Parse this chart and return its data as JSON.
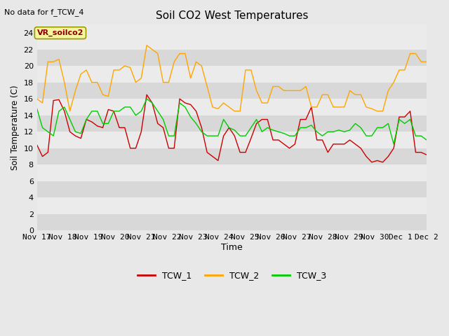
{
  "title": "Soil CO2 West Temperatures",
  "no_data_text": "No data for f_TCW_4",
  "ylabel": "Soil Temperature (C)",
  "xlabel": "Time",
  "annotation_label": "VR_soilco2",
  "ylim": [
    0,
    25
  ],
  "yticks": [
    0,
    2,
    4,
    6,
    8,
    10,
    12,
    14,
    16,
    18,
    20,
    22,
    24
  ],
  "xtick_labels": [
    "Nov 17",
    "Nov 18",
    "Nov 19",
    "Nov 20",
    "Nov 21",
    "Nov 22",
    "Nov 23",
    "Nov 24",
    "Nov 25",
    "Nov 26",
    "Nov 27",
    "Nov 28",
    "Nov 29",
    "Nov 30",
    "Dec 1",
    "Dec 2"
  ],
  "bg_color": "#e8e8e8",
  "band_light": "#ebebeb",
  "band_dark": "#d8d8d8",
  "line_colors": {
    "TCW_1": "#cc0000",
    "TCW_2": "#ffa500",
    "TCW_3": "#00cc00"
  },
  "TCW_1": [
    10.4,
    9.0,
    9.5,
    15.8,
    15.9,
    14.5,
    12.0,
    11.5,
    11.2,
    13.5,
    13.2,
    12.7,
    12.5,
    14.7,
    14.5,
    12.5,
    12.5,
    10.0,
    10.0,
    12.0,
    16.5,
    15.5,
    13.0,
    12.5,
    10.0,
    10.0,
    16.0,
    15.5,
    15.3,
    14.5,
    12.5,
    9.5,
    9.0,
    8.5,
    11.5,
    12.5,
    11.5,
    9.5,
    9.5,
    11.2,
    13.0,
    13.5,
    13.5,
    11.0,
    11.0,
    10.5,
    10.0,
    10.5,
    13.5,
    13.5,
    15.0,
    11.0,
    11.0,
    9.5,
    10.5,
    10.5,
    10.5,
    11.0,
    10.5,
    10.0,
    9.0,
    8.3,
    8.5,
    8.3,
    9.0,
    10.0,
    13.8,
    13.8,
    14.5,
    9.5,
    9.5,
    9.2
  ],
  "TCW_2": [
    16.0,
    15.5,
    20.5,
    20.5,
    20.8,
    18.0,
    14.5,
    17.0,
    19.0,
    19.5,
    18.0,
    18.0,
    16.5,
    16.3,
    19.5,
    19.5,
    20.0,
    19.8,
    18.0,
    18.5,
    22.5,
    22.0,
    21.5,
    18.0,
    18.0,
    20.5,
    21.5,
    21.5,
    18.5,
    20.5,
    20.0,
    17.5,
    15.0,
    14.8,
    15.5,
    15.0,
    14.5,
    14.5,
    19.5,
    19.5,
    17.0,
    15.5,
    15.5,
    17.5,
    17.5,
    17.0,
    17.0,
    17.0,
    17.0,
    17.5,
    15.0,
    15.0,
    16.5,
    16.5,
    15.0,
    15.0,
    15.0,
    17.0,
    16.5,
    16.5,
    15.0,
    14.8,
    14.5,
    14.5,
    17.0,
    18.0,
    19.5,
    19.5,
    21.5,
    21.5,
    20.5,
    20.5
  ],
  "TCW_3": [
    14.8,
    12.5,
    12.0,
    11.5,
    14.5,
    15.0,
    13.5,
    12.0,
    11.8,
    13.5,
    14.5,
    14.5,
    13.0,
    13.0,
    14.5,
    14.5,
    15.0,
    15.0,
    14.0,
    14.5,
    16.0,
    15.5,
    14.5,
    13.5,
    11.5,
    11.5,
    15.5,
    15.0,
    13.8,
    13.0,
    12.0,
    11.5,
    11.5,
    11.5,
    13.5,
    12.5,
    12.2,
    11.5,
    11.5,
    12.5,
    13.5,
    12.0,
    12.5,
    12.2,
    12.0,
    11.8,
    11.5,
    11.5,
    12.5,
    12.5,
    12.8,
    12.0,
    11.5,
    12.0,
    12.0,
    12.2,
    12.0,
    12.2,
    13.0,
    12.5,
    11.5,
    11.5,
    12.5,
    12.5,
    13.0,
    10.5,
    13.5,
    13.0,
    13.5,
    11.5,
    11.5,
    11.0
  ]
}
